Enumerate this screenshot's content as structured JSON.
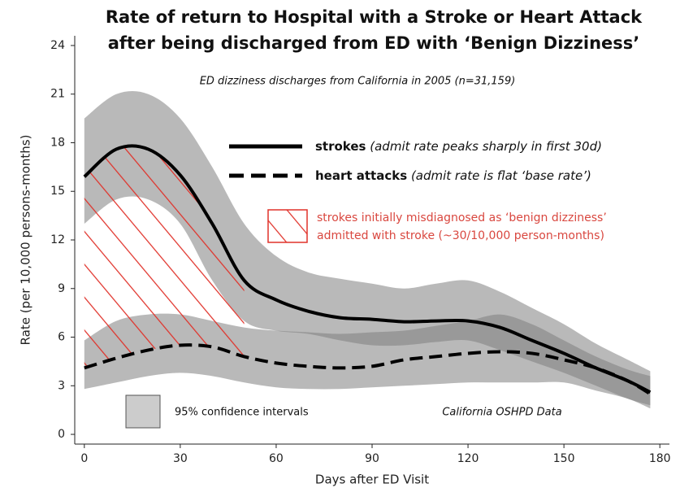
{
  "chart_data": {
    "type": "line",
    "title": [
      "Rate of return to Hospital with a Stroke or Heart Attack",
      "after being discharged from ED with ‘Benign Dizziness’"
    ],
    "subtitle": "ED dizziness discharges from California in 2005 (n=31,159)",
    "x_label": "Days after ED Visit",
    "y_label": "Rate (per 10,000 persons-months)",
    "x": [
      0,
      10,
      20,
      30,
      40,
      50,
      60,
      70,
      80,
      90,
      100,
      110,
      120,
      130,
      140,
      150,
      160,
      170,
      177
    ],
    "series": [
      {
        "name": "strokes",
        "note": "(admit rate peaks sharply in first 30d)",
        "color": "#000000",
        "dash": false,
        "values": [
          15.9,
          17.6,
          17.6,
          16.0,
          13.0,
          9.5,
          8.3,
          7.6,
          7.2,
          7.1,
          6.95,
          7.0,
          7.0,
          6.6,
          5.8,
          5.0,
          4.1,
          3.3,
          2.6
        ],
        "upper": [
          19.5,
          21.0,
          21.0,
          19.5,
          16.5,
          13.0,
          11.0,
          10.0,
          9.6,
          9.3,
          9.0,
          9.3,
          9.5,
          8.8,
          7.8,
          6.8,
          5.6,
          4.6,
          3.9
        ],
        "lower": [
          13.0,
          14.5,
          14.5,
          13.0,
          9.5,
          7.0,
          6.4,
          6.2,
          5.8,
          5.5,
          5.5,
          5.7,
          5.8,
          5.2,
          4.5,
          3.8,
          3.0,
          2.2,
          1.8
        ]
      },
      {
        "name": "heart attacks",
        "note": "(admit rate is flat ‘base rate’)",
        "color": "#000000",
        "dash": true,
        "values": [
          4.1,
          4.7,
          5.2,
          5.5,
          5.4,
          4.8,
          4.4,
          4.2,
          4.1,
          4.2,
          4.6,
          4.8,
          5.0,
          5.1,
          5.0,
          4.6,
          4.1,
          3.3,
          2.5
        ],
        "upper": [
          5.8,
          7.0,
          7.4,
          7.4,
          7.0,
          6.6,
          6.4,
          6.3,
          6.2,
          6.3,
          6.4,
          6.7,
          7.0,
          7.4,
          6.8,
          5.8,
          4.8,
          4.0,
          3.6
        ],
        "lower": [
          2.8,
          3.2,
          3.6,
          3.8,
          3.6,
          3.2,
          2.9,
          2.8,
          2.8,
          2.9,
          3.0,
          3.1,
          3.2,
          3.2,
          3.2,
          3.2,
          2.7,
          2.2,
          1.6
        ]
      }
    ],
    "hatch_label": [
      "strokes initially misdiagnosed as ‘benign dizziness’",
      "admitted with stroke (~30/10,000 person-months)"
    ],
    "hatch_color": "#e0322a",
    "hatch_until": 50,
    "ci_label": "95% confidence intervals",
    "band_color": "#808080",
    "source": "California OSHPD Data",
    "xlim": [
      -3,
      183
    ],
    "xticks": [
      0,
      30,
      60,
      90,
      120,
      150,
      180
    ],
    "ylim": [
      -0.6,
      24.6
    ],
    "yticks": [
      0,
      3,
      6,
      9,
      12,
      15,
      18,
      21,
      24
    ]
  }
}
